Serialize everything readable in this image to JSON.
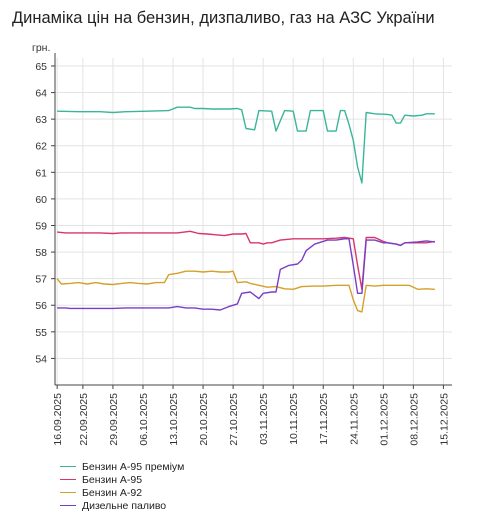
{
  "title": "Динаміка цін на бензин, дизпаливо, газ на АЗС України",
  "chart_data": {
    "type": "line",
    "ylabel": "грн.",
    "ylim": [
      53,
      65.3
    ],
    "yticks": [
      54,
      55,
      56,
      57,
      58,
      59,
      60,
      61,
      62,
      63,
      64,
      65
    ],
    "x_ticks": [
      "16.09.2025",
      "22.09.2025",
      "29.09.2025",
      "06.10.2025",
      "13.10.2025",
      "20.10.2025",
      "27.10.2025",
      "03.11.2025",
      "10.11.2025",
      "17.11.2025",
      "24.11.2025",
      "01.12.2025",
      "08.12.2025",
      "15.12.2025"
    ],
    "x_days": [
      0,
      6,
      13,
      20,
      27,
      34,
      41,
      48,
      55,
      62,
      69,
      76,
      83,
      90
    ],
    "x_range": [
      -0.5,
      92
    ],
    "legend_position": "bottom-left",
    "grid": true,
    "series": [
      {
        "name": "Бензин А-95 преміум",
        "color": "#3bb59a",
        "points": [
          [
            0,
            63.3
          ],
          [
            5,
            63.28
          ],
          [
            10,
            63.28
          ],
          [
            13,
            63.25
          ],
          [
            16,
            63.28
          ],
          [
            21,
            63.3
          ],
          [
            26,
            63.32
          ],
          [
            28,
            63.45
          ],
          [
            31,
            63.45
          ],
          [
            32,
            63.4
          ],
          [
            34,
            63.4
          ],
          [
            36,
            63.38
          ],
          [
            38,
            63.38
          ],
          [
            40,
            63.38
          ],
          [
            42,
            63.4
          ],
          [
            43,
            63.35
          ],
          [
            44,
            62.65
          ],
          [
            46,
            62.6
          ],
          [
            47,
            63.32
          ],
          [
            50,
            63.3
          ],
          [
            51,
            62.55
          ],
          [
            53,
            63.32
          ],
          [
            55,
            63.3
          ],
          [
            56,
            62.55
          ],
          [
            58,
            62.55
          ],
          [
            59,
            63.32
          ],
          [
            62,
            63.32
          ],
          [
            63,
            62.55
          ],
          [
            65,
            62.55
          ],
          [
            66,
            63.32
          ],
          [
            67,
            63.32
          ],
          [
            68,
            62.8
          ],
          [
            69,
            62.2
          ],
          [
            70,
            61.2
          ],
          [
            71,
            60.6
          ],
          [
            72,
            63.25
          ],
          [
            74,
            63.2
          ],
          [
            77,
            63.18
          ],
          [
            78,
            63.15
          ],
          [
            79,
            62.85
          ],
          [
            80,
            62.85
          ],
          [
            81,
            63.15
          ],
          [
            83,
            63.12
          ],
          [
            85,
            63.15
          ],
          [
            86,
            63.2
          ],
          [
            88,
            63.2
          ]
        ]
      },
      {
        "name": "Бензин А-95",
        "color": "#d9356b",
        "points": [
          [
            0,
            58.75
          ],
          [
            2,
            58.72
          ],
          [
            10,
            58.72
          ],
          [
            13,
            58.7
          ],
          [
            15,
            58.72
          ],
          [
            28,
            58.72
          ],
          [
            31,
            58.78
          ],
          [
            33,
            58.7
          ],
          [
            35,
            58.68
          ],
          [
            37,
            58.65
          ],
          [
            39,
            58.62
          ],
          [
            41,
            58.68
          ],
          [
            43,
            58.68
          ],
          [
            44,
            58.7
          ],
          [
            45,
            58.35
          ],
          [
            47,
            58.35
          ],
          [
            48,
            58.3
          ],
          [
            49,
            58.35
          ],
          [
            50,
            58.35
          ],
          [
            52,
            58.45
          ],
          [
            55,
            58.5
          ],
          [
            58,
            58.5
          ],
          [
            62,
            58.5
          ],
          [
            65,
            58.52
          ],
          [
            67,
            58.55
          ],
          [
            69,
            58.5
          ],
          [
            70,
            57.5
          ],
          [
            71,
            56.6
          ],
          [
            72,
            58.55
          ],
          [
            74,
            58.55
          ],
          [
            76,
            58.4
          ],
          [
            77,
            58.35
          ],
          [
            79,
            58.3
          ],
          [
            80,
            58.25
          ],
          [
            81,
            58.35
          ],
          [
            84,
            58.35
          ],
          [
            86,
            58.35
          ],
          [
            88,
            58.4
          ]
        ]
      },
      {
        "name": "Бензин А-92",
        "color": "#d4a02a",
        "points": [
          [
            0,
            57.0
          ],
          [
            1,
            56.8
          ],
          [
            3,
            56.82
          ],
          [
            5,
            56.85
          ],
          [
            7,
            56.8
          ],
          [
            9,
            56.85
          ],
          [
            11,
            56.8
          ],
          [
            13,
            56.78
          ],
          [
            15,
            56.82
          ],
          [
            17,
            56.85
          ],
          [
            19,
            56.82
          ],
          [
            21,
            56.8
          ],
          [
            23,
            56.85
          ],
          [
            25,
            56.85
          ],
          [
            26,
            57.15
          ],
          [
            28,
            57.2
          ],
          [
            30,
            57.28
          ],
          [
            32,
            57.28
          ],
          [
            34,
            57.25
          ],
          [
            36,
            57.28
          ],
          [
            38,
            57.25
          ],
          [
            40,
            57.25
          ],
          [
            41,
            57.28
          ],
          [
            42,
            56.85
          ],
          [
            44,
            56.88
          ],
          [
            45,
            56.82
          ],
          [
            47,
            56.75
          ],
          [
            49,
            56.68
          ],
          [
            51,
            56.7
          ],
          [
            53,
            56.62
          ],
          [
            55,
            56.6
          ],
          [
            57,
            56.7
          ],
          [
            60,
            56.72
          ],
          [
            62,
            56.72
          ],
          [
            65,
            56.75
          ],
          [
            67,
            56.75
          ],
          [
            68,
            56.75
          ],
          [
            69,
            56.2
          ],
          [
            70,
            55.8
          ],
          [
            71,
            55.75
          ],
          [
            72,
            56.75
          ],
          [
            74,
            56.72
          ],
          [
            76,
            56.75
          ],
          [
            78,
            56.75
          ],
          [
            80,
            56.75
          ],
          [
            82,
            56.75
          ],
          [
            84,
            56.6
          ],
          [
            86,
            56.62
          ],
          [
            88,
            56.6
          ]
        ]
      },
      {
        "name": "Дизельне паливо",
        "color": "#7a3ec6",
        "points": [
          [
            0,
            55.9
          ],
          [
            2,
            55.9
          ],
          [
            3,
            55.88
          ],
          [
            10,
            55.88
          ],
          [
            13,
            55.88
          ],
          [
            16,
            55.9
          ],
          [
            26,
            55.9
          ],
          [
            28,
            55.95
          ],
          [
            30,
            55.9
          ],
          [
            32,
            55.9
          ],
          [
            34,
            55.85
          ],
          [
            36,
            55.85
          ],
          [
            38,
            55.82
          ],
          [
            40,
            55.95
          ],
          [
            42,
            56.05
          ],
          [
            43,
            56.45
          ],
          [
            45,
            56.5
          ],
          [
            47,
            56.25
          ],
          [
            48,
            56.45
          ],
          [
            50,
            56.5
          ],
          [
            51,
            56.5
          ],
          [
            52,
            57.35
          ],
          [
            54,
            57.5
          ],
          [
            56,
            57.55
          ],
          [
            57,
            57.7
          ],
          [
            58,
            58.05
          ],
          [
            60,
            58.3
          ],
          [
            63,
            58.45
          ],
          [
            65,
            58.45
          ],
          [
            67,
            58.5
          ],
          [
            68,
            58.5
          ],
          [
            69,
            57.5
          ],
          [
            70,
            56.45
          ],
          [
            71,
            56.45
          ],
          [
            72,
            58.45
          ],
          [
            74,
            58.45
          ],
          [
            76,
            58.35
          ],
          [
            77,
            58.35
          ],
          [
            79,
            58.3
          ],
          [
            80,
            58.25
          ],
          [
            81,
            58.35
          ],
          [
            84,
            58.38
          ],
          [
            86,
            58.42
          ],
          [
            88,
            58.38
          ]
        ]
      }
    ]
  }
}
